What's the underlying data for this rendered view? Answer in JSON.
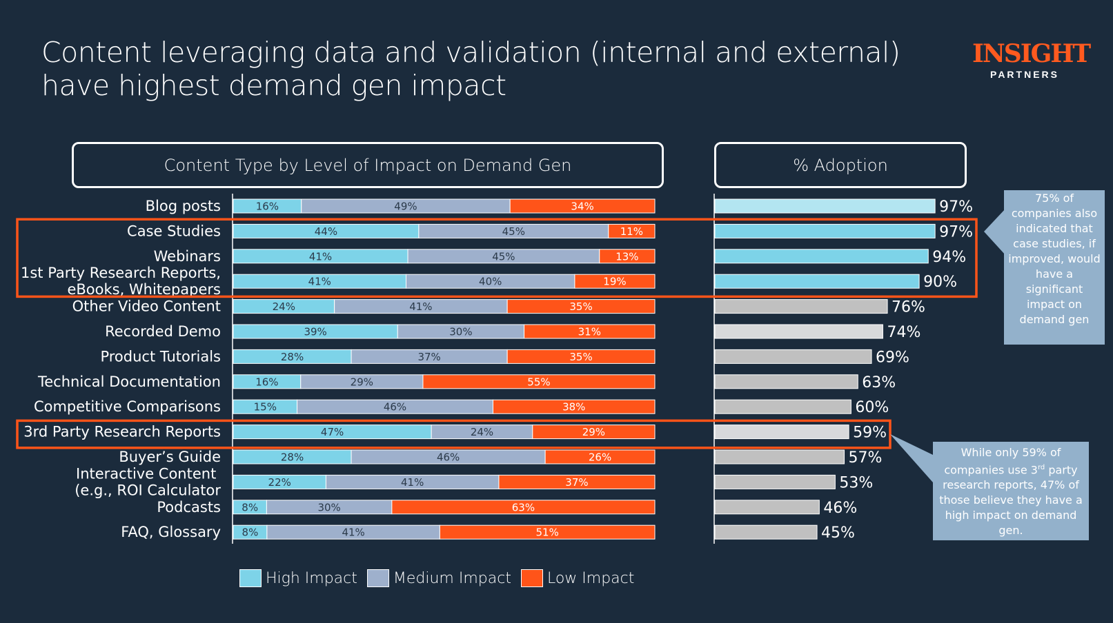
{
  "header": {
    "title_line1": "Content leveraging data and validation (internal and external)",
    "title_line2": "have highest demand gen impact",
    "logo_main": "INSIGHT",
    "logo_sub": "PARTNERS"
  },
  "colors": {
    "background": "#1b2b3c",
    "high": "#7dd3e8",
    "medium": "#9eb0cc",
    "low": "#ff5419",
    "highlight_box": "#ff5419",
    "adoption_light_cyan": "#b3e5f1",
    "adoption_cyan": "#7dd3e8",
    "adoption_gray": "#c0c0c0",
    "adoption_light_gray": "#d8d9db",
    "callout": "#93b1cb"
  },
  "callouts": {
    "case_studies": "75% of companies also indicated that case studies, if improved, would have a significant impact on demand gen",
    "third_party_pre": "While only 59% of companies use 3",
    "third_party_sup": "rd",
    "third_party_post": " party research reports, 47% of those believe they have a high impact on demand gen."
  },
  "chart_data": [
    {
      "type": "bar",
      "subtype": "stacked-horizontal-100",
      "title": "Content Type by Level of Impact on Demand Gen",
      "categories": [
        "Blog posts",
        "Case Studies",
        "Webinars",
        "1st Party Research Reports, eBooks, Whitepapers",
        "Other Video Content",
        "Recorded Demo",
        "Product Tutorials",
        "Technical Documentation",
        "Competitive Comparisons",
        "3rd Party Research Reports",
        "Buyer's Guide",
        "Interactive Content (e.g., ROI Calculator",
        "Podcasts",
        "FAQ, Glossary"
      ],
      "category_lines": [
        [
          "Blog posts"
        ],
        [
          "Case Studies"
        ],
        [
          "Webinars"
        ],
        [
          "1st Party Research Reports,",
          "eBooks, Whitepapers"
        ],
        [
          "Other Video Content"
        ],
        [
          "Recorded Demo"
        ],
        [
          "Product Tutorials"
        ],
        [
          "Technical Documentation"
        ],
        [
          "Competitive Comparisons"
        ],
        [
          "3rd Party Research Reports"
        ],
        [
          "Buyer’s Guide"
        ],
        [
          "Interactive Content ",
          "(e.g., ROI Calculator"
        ],
        [
          "Podcasts"
        ],
        [
          "FAQ, Glossary"
        ]
      ],
      "series": [
        {
          "name": "High Impact",
          "values": [
            16,
            44,
            41,
            41,
            24,
            39,
            28,
            16,
            15,
            47,
            28,
            22,
            8,
            8
          ]
        },
        {
          "name": "Medium Impact",
          "values": [
            49,
            45,
            45,
            40,
            41,
            30,
            37,
            29,
            46,
            24,
            46,
            41,
            30,
            41
          ]
        },
        {
          "name": "Low Impact",
          "values": [
            34,
            11,
            13,
            19,
            35,
            31,
            35,
            55,
            38,
            29,
            26,
            37,
            63,
            51
          ]
        }
      ],
      "legend": "bottom",
      "highlighted_categories": [
        "Case Studies",
        "Webinars",
        "1st Party Research Reports, eBooks, Whitepapers",
        "3rd Party Research Reports"
      ],
      "xlim": [
        0,
        100
      ],
      "grid": false
    },
    {
      "type": "bar",
      "subtype": "horizontal",
      "title": "% Adoption",
      "categories": [
        "Blog posts",
        "Case Studies",
        "Webinars",
        "1st Party Research Reports, eBooks, Whitepapers",
        "Other Video Content",
        "Recorded Demo",
        "Product Tutorials",
        "Technical Documentation",
        "Competitive Comparisons",
        "3rd Party Research Reports",
        "Buyer's Guide",
        "Interactive Content (e.g., ROI Calculator",
        "Podcasts",
        "FAQ, Glossary"
      ],
      "values": [
        97,
        97,
        94,
        90,
        76,
        74,
        69,
        63,
        60,
        59,
        57,
        53,
        46,
        45
      ],
      "value_labels": [
        "97%",
        "97%",
        "94%",
        "90%",
        "76%",
        "74%",
        "69%",
        "63%",
        "60%",
        "59%",
        "57%",
        "53%",
        "46%",
        "45%"
      ],
      "bar_color_keys": [
        "adoption_light_cyan",
        "adoption_cyan",
        "adoption_cyan",
        "adoption_cyan",
        "adoption_gray",
        "adoption_light_gray",
        "adoption_gray",
        "adoption_gray",
        "adoption_gray",
        "adoption_light_gray",
        "adoption_gray",
        "adoption_gray",
        "adoption_gray",
        "adoption_gray"
      ],
      "xlim": [
        0,
        100
      ],
      "grid": false
    }
  ]
}
